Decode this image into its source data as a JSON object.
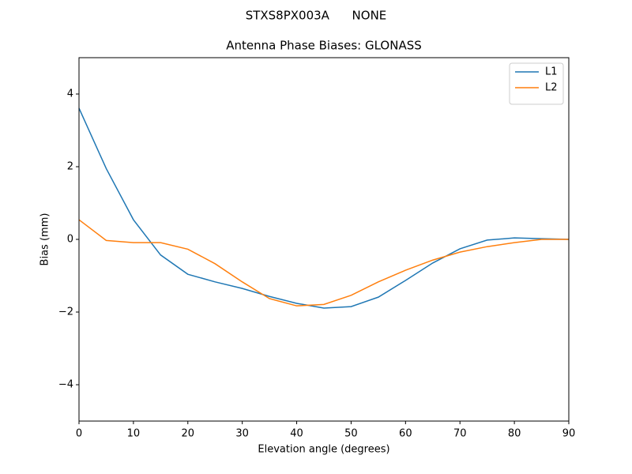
{
  "chart_data": {
    "type": "line",
    "suptitle": "STXS8PX003A      NONE",
    "title": "Antenna Phase Biases: GLONASS",
    "x_label": "Elevation angle (degrees)",
    "y_label": "Bias (mm)",
    "x": [
      0,
      5,
      10,
      15,
      20,
      25,
      30,
      35,
      40,
      45,
      50,
      55,
      60,
      65,
      70,
      75,
      80,
      85,
      90
    ],
    "series": [
      {
        "name": "L1",
        "color": "#1f77b4",
        "values": [
          3.61,
          1.95,
          0.54,
          -0.43,
          -0.96,
          -1.17,
          -1.35,
          -1.57,
          -1.76,
          -1.89,
          -1.85,
          -1.59,
          -1.13,
          -0.65,
          -0.26,
          -0.02,
          0.04,
          0.02,
          0
        ]
      },
      {
        "name": "L2",
        "color": "#ff7f0e",
        "values": [
          0.54,
          -0.03,
          -0.09,
          -0.09,
          -0.27,
          -0.67,
          -1.17,
          -1.63,
          -1.83,
          -1.79,
          -1.54,
          -1.17,
          -0.85,
          -0.57,
          -0.35,
          -0.2,
          -0.09,
          0,
          0
        ]
      }
    ],
    "xlim": [
      0,
      90
    ],
    "xticks": [
      0,
      10,
      20,
      30,
      40,
      50,
      60,
      70,
      80,
      90
    ],
    "ylim": [
      -5,
      5
    ],
    "yticks": [
      {
        "value": -4,
        "label": "−4"
      },
      {
        "value": -2,
        "label": "−2"
      },
      0,
      2,
      4
    ],
    "legend": "upper right"
  }
}
